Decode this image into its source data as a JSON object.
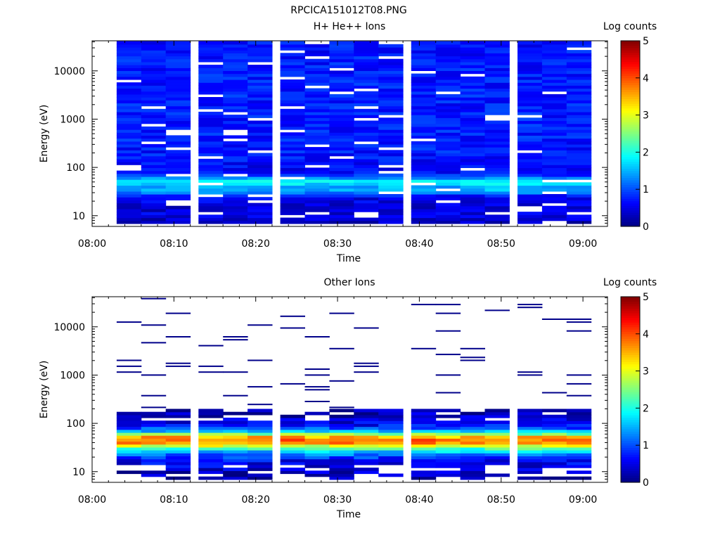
{
  "figure": {
    "title": "RPCICA151012T08.PNG"
  },
  "chart_data": [
    {
      "type": "heatmap",
      "title": "H+ He++ Ions",
      "xlabel": "Time",
      "ylabel": "Energy (eV)",
      "x_ticks": [
        "08:00",
        "08:10",
        "08:20",
        "08:30",
        "08:40",
        "08:50",
        "09:00"
      ],
      "xlim": [
        "08:00",
        "09:03"
      ],
      "y_scale": "log",
      "y_ticks": [
        10,
        100,
        1000,
        10000
      ],
      "ylim": [
        6,
        42000
      ],
      "time_columns": [
        "08:03",
        "08:06",
        "08:09",
        "08:13",
        "08:16",
        "08:19",
        "08:23",
        "08:26",
        "08:29",
        "08:32",
        "08:35",
        "08:39",
        "08:42",
        "08:45",
        "08:48",
        "08:52",
        "08:55",
        "08:58"
      ],
      "value_range": [
        0,
        5
      ],
      "colorbar": {
        "label": "Log counts",
        "ticks": [
          0,
          1,
          2,
          3,
          4,
          5
        ],
        "colormap": "jet"
      },
      "profile": {
        "energy_eV": [
          7,
          9,
          11,
          14,
          17,
          20,
          24,
          28,
          33,
          38,
          45,
          52,
          60,
          70,
          80,
          95,
          110,
          150,
          300,
          1000,
          3000,
          10000,
          42000
        ],
        "log_counts_typical": [
          0.3,
          0.4,
          0.5,
          0.4,
          0.45,
          0.5,
          0.55,
          0.9,
          1.6,
          1.4,
          1.7,
          1.8,
          1.3,
          0.8,
          0.7,
          0.6,
          0.6,
          0.7,
          0.75,
          0.75,
          0.75,
          0.75,
          0.7
        ]
      }
    },
    {
      "type": "heatmap",
      "title": "Other Ions",
      "xlabel": "Time",
      "ylabel": "Energy (eV)",
      "x_ticks": [
        "08:00",
        "08:10",
        "08:20",
        "08:30",
        "08:40",
        "08:50",
        "09:00"
      ],
      "xlim": [
        "08:00",
        "09:03"
      ],
      "y_scale": "log",
      "y_ticks": [
        10,
        100,
        1000,
        10000
      ],
      "ylim": [
        6,
        42000
      ],
      "time_columns": [
        "08:03",
        "08:06",
        "08:09",
        "08:13",
        "08:16",
        "08:19",
        "08:23",
        "08:26",
        "08:29",
        "08:32",
        "08:35",
        "08:39",
        "08:42",
        "08:45",
        "08:48",
        "08:52",
        "08:55",
        "08:58"
      ],
      "value_range": [
        0,
        5
      ],
      "colorbar": {
        "label": "Log counts",
        "ticks": [
          0,
          1,
          2,
          3,
          4,
          5
        ],
        "colormap": "jet"
      },
      "profile": {
        "energy_eV": [
          7,
          9,
          11,
          14,
          17,
          20,
          24,
          28,
          33,
          38,
          45,
          52,
          60,
          70,
          80,
          95,
          110,
          150,
          200
        ],
        "log_counts_typical": [
          0.15,
          0.3,
          0.4,
          0.5,
          0.6,
          0.9,
          1.3,
          1.8,
          2.6,
          3.6,
          3.9,
          3.6,
          2.6,
          1.5,
          1.0,
          0.6,
          0.45,
          0.3,
          0.15
        ]
      },
      "sparse_events": "isolated single-count lines (log counts ≈ 0) scattered between 200 eV and 40000 eV"
    }
  ]
}
